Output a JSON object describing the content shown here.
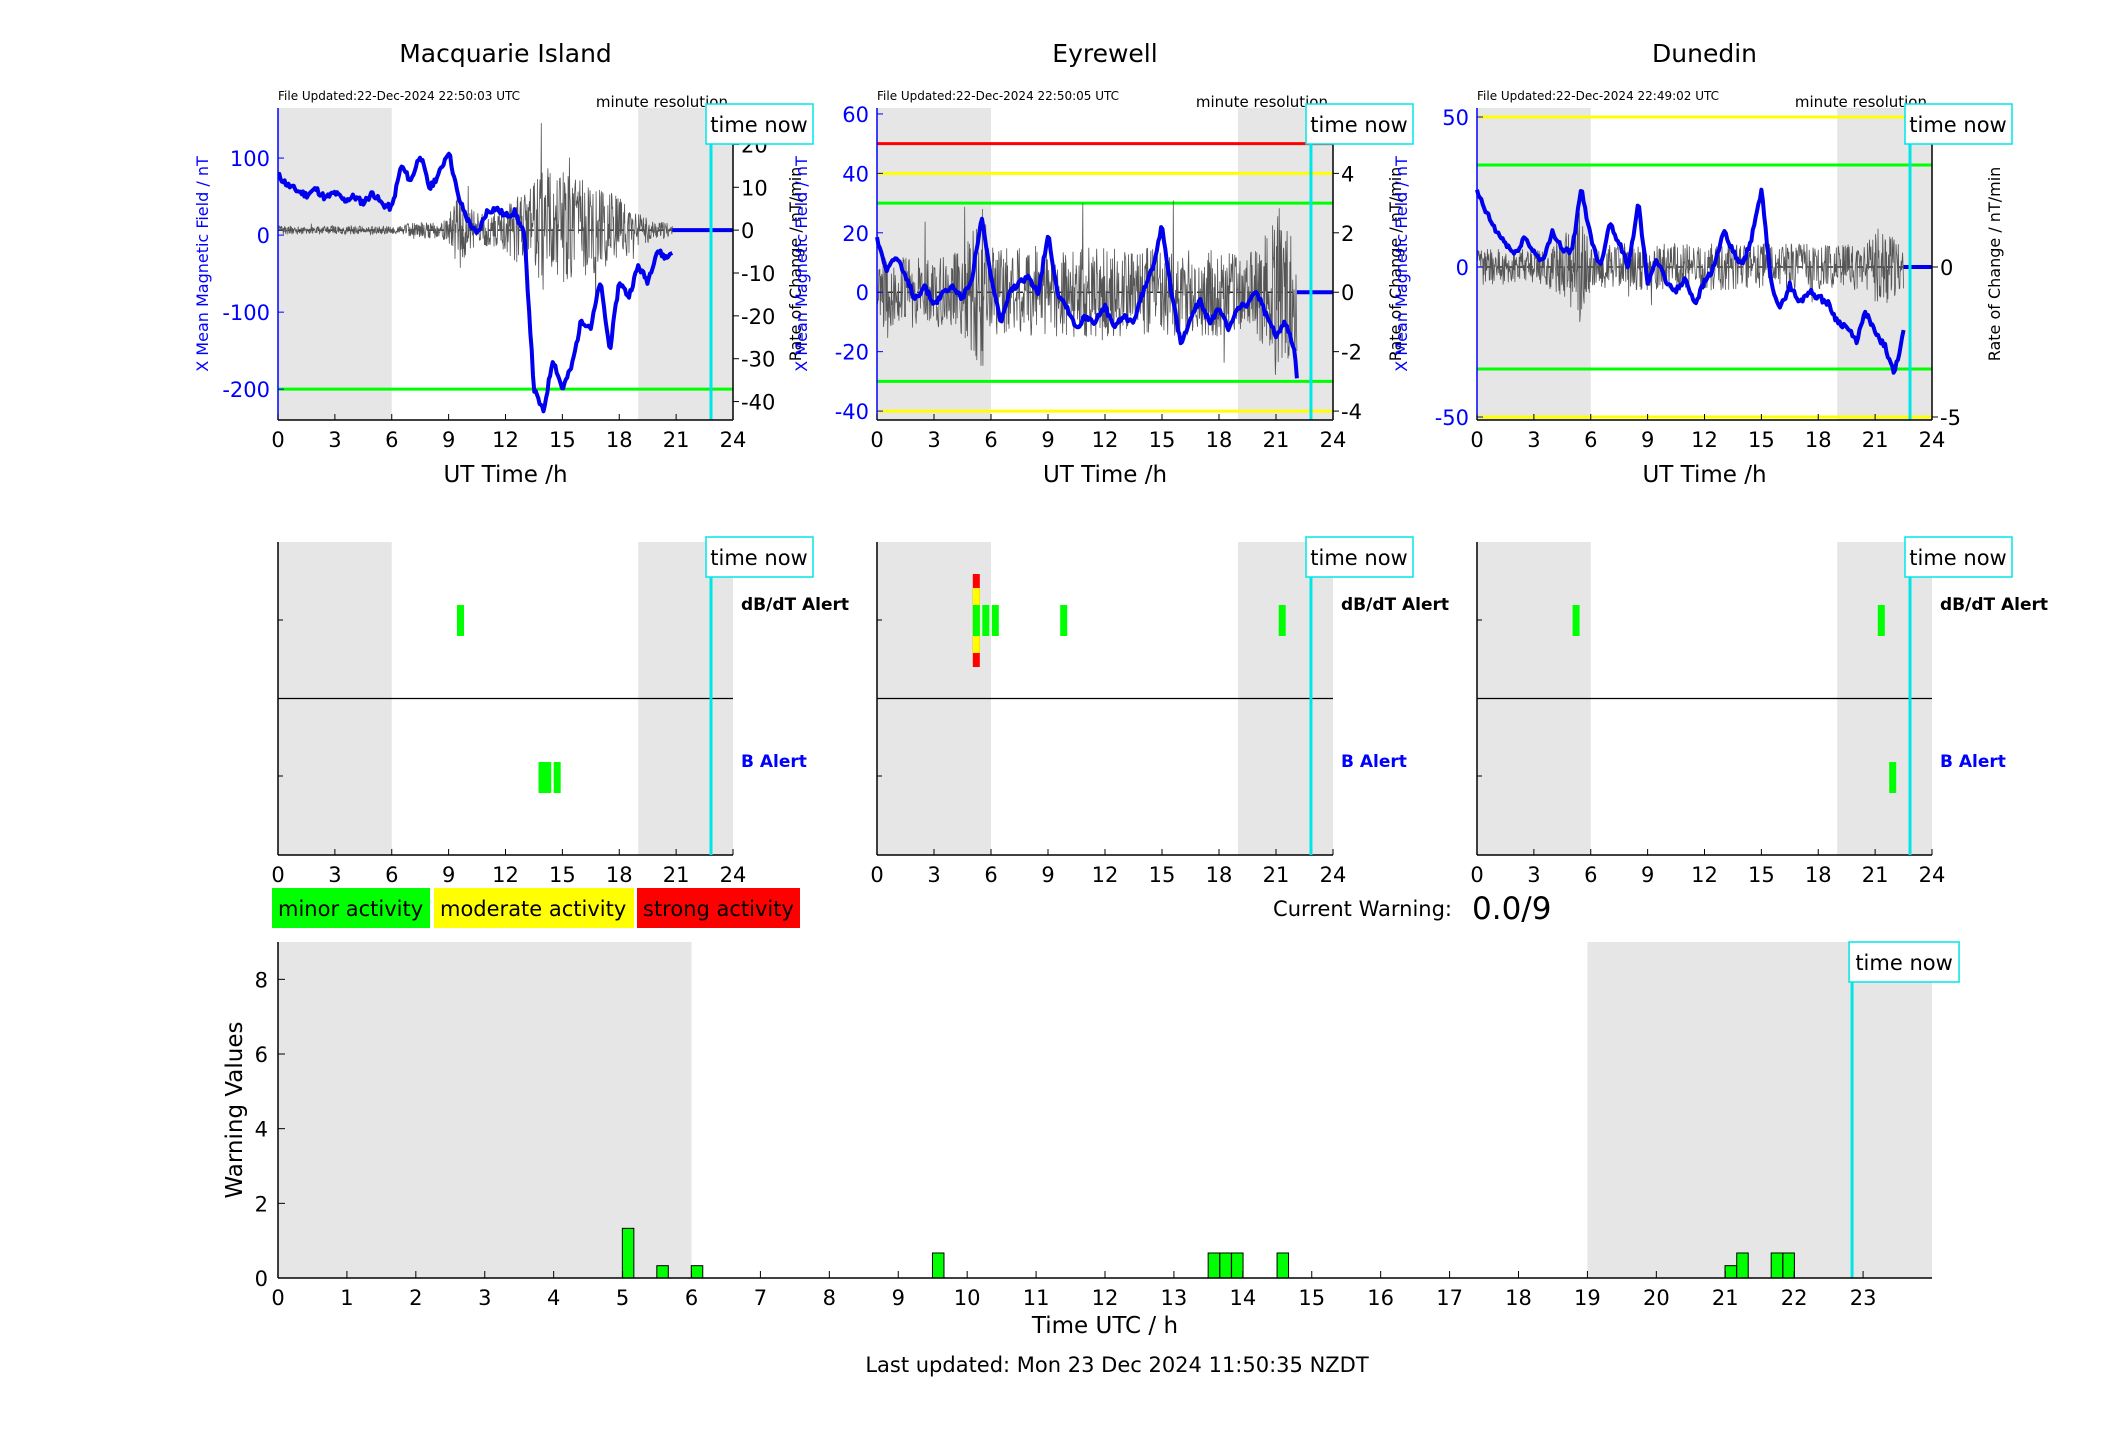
{
  "footer": {
    "last_updated": "Last updated: Mon 23 Dec 2024 11:50:35 NZDT"
  },
  "colors": {
    "field_trace": "#0000ee",
    "rate_trace": "#555555",
    "minor": "#00ff00",
    "moderate": "#ffff00",
    "strong": "#ff0000",
    "night_shade": "#e6e6e6",
    "time_now_line": "#00e5e5",
    "axis_blue": "#0000ff"
  },
  "legend": {
    "minor": "minor activity",
    "moderate": "moderate activity",
    "strong": "strong activity"
  },
  "current_warning": {
    "label": "Current Warning:",
    "value": "0.0/9"
  },
  "common": {
    "time_now_label": "time now",
    "x_label_top": "UT Time /h",
    "y_left_label": "X Mean Magnetic Field / nT",
    "y_right_label": "Rate of Change / nT/min",
    "resolution": "minute resolution",
    "alert_dbdt": "dB/dT Alert",
    "alert_b": "B Alert",
    "time_ticks": [
      0,
      3,
      6,
      9,
      12,
      15,
      18,
      21,
      24
    ]
  },
  "chart_data": [
    {
      "type": "line",
      "title": "Macquarie Island",
      "file_updated": "File Updated:22-Dec-2024 22:50:03 UTC",
      "xlabel": "UT Time /h",
      "xlim": [
        0,
        24
      ],
      "ylabel_left": "X Mean Magnetic Field / nT",
      "ylim_left": [
        -240,
        165
      ],
      "yticks_left": [
        100,
        0,
        -100,
        -200
      ],
      "ylabel_right": "Rate of Change / nT/min",
      "ylim_right": [
        -44.3,
        28.5
      ],
      "yticks_right": [
        20,
        10,
        0,
        -10,
        -20,
        -30,
        -40
      ],
      "thresholds": [
        {
          "value": -200,
          "color": "#00ff00"
        }
      ],
      "night_shading_hours": [
        [
          0,
          6
        ],
        [
          19,
          24
        ]
      ],
      "time_now": 22.84,
      "data_end": 20.8,
      "series": [
        {
          "x": [
            0,
            0.5,
            1,
            1.5,
            2,
            2.5,
            3,
            3.5,
            4,
            4.5,
            5,
            5.5,
            6,
            6.5,
            7,
            7.5,
            8,
            8.5,
            9,
            9.5,
            10,
            10.5,
            11,
            11.5,
            12,
            12.5,
            13,
            13.5,
            14,
            14.5,
            15,
            15.5,
            16,
            16.5,
            17,
            17.5,
            18,
            18.5,
            19,
            19.5,
            20,
            20.5,
            20.8
          ],
          "values": [
            78,
            65,
            58,
            52,
            60,
            48,
            55,
            45,
            50,
            42,
            55,
            40,
            35,
            90,
            70,
            105,
            60,
            80,
            110,
            50,
            20,
            0,
            30,
            35,
            25,
            30,
            0,
            -200,
            -230,
            -160,
            -200,
            -170,
            -110,
            -120,
            -60,
            -150,
            -60,
            -80,
            -40,
            -60,
            -20,
            -30,
            -20
          ]
        }
      ],
      "rate_amplitude": [
        1,
        1,
        1,
        1,
        1,
        1,
        1,
        1,
        1,
        1,
        1,
        1,
        1,
        1,
        2,
        2,
        2,
        2,
        3,
        10,
        5,
        5,
        4,
        4,
        5,
        8,
        9,
        12,
        14,
        16,
        14,
        12,
        12,
        12,
        10,
        10,
        8,
        6,
        4,
        3,
        2,
        2,
        1
      ],
      "alerts": {
        "dbdt": [
          {
            "hour": 9.6,
            "level": "minor"
          }
        ],
        "b": [
          {
            "hour": 13.9,
            "level": "minor"
          },
          {
            "hour": 14.2,
            "level": "minor"
          },
          {
            "hour": 14.7,
            "level": "minor"
          }
        ]
      }
    },
    {
      "type": "line",
      "title": "Eyrewell",
      "file_updated": "File Updated:22-Dec-2024 22:50:05 UTC",
      "xlabel": "UT Time /h",
      "xlim": [
        0,
        24
      ],
      "ylabel_left": "X Mean Magnetic Field / nT",
      "ylim_left": [
        -43,
        62
      ],
      "yticks_left": [
        60,
        40,
        20,
        0,
        -20,
        -40
      ],
      "ylabel_right": "Rate of Change / nT/min",
      "ylim_right": [
        -4.3,
        6.2
      ],
      "yticks_right": [
        6,
        4,
        2,
        0,
        -2,
        -4
      ],
      "thresholds": [
        {
          "value": 50,
          "color": "#ff0000"
        },
        {
          "value": 40,
          "color": "#ffff00"
        },
        {
          "value": 30,
          "color": "#00ff00"
        },
        {
          "value": -30,
          "color": "#00ff00"
        },
        {
          "value": -40,
          "color": "#ffff00"
        }
      ],
      "night_shading_hours": [
        [
          0,
          6
        ],
        [
          19,
          24
        ]
      ],
      "time_now": 22.84,
      "data_end": 22.1,
      "series": [
        {
          "x": [
            0,
            0.5,
            1,
            1.5,
            2,
            2.5,
            3,
            3.5,
            4,
            4.5,
            5,
            5.5,
            6,
            6.5,
            7,
            7.5,
            8,
            8.5,
            9,
            9.5,
            10,
            10.5,
            11,
            11.5,
            12,
            12.5,
            13,
            13.5,
            14,
            14.5,
            15,
            15.5,
            16,
            16.5,
            17,
            17.5,
            18,
            18.5,
            19,
            19.5,
            20,
            20.5,
            21,
            21.5,
            22,
            22.1
          ],
          "values": [
            18,
            8,
            12,
            5,
            -2,
            2,
            -4,
            0,
            2,
            -2,
            5,
            25,
            5,
            -10,
            0,
            3,
            5,
            0,
            20,
            0,
            -5,
            -12,
            -8,
            -10,
            -5,
            -12,
            -8,
            -10,
            0,
            8,
            23,
            0,
            -18,
            -8,
            -3,
            -10,
            -6,
            -12,
            -5,
            -4,
            0,
            -8,
            -15,
            -10,
            -20,
            -28
          ]
        }
      ],
      "rate_amplitude": [
        1.2,
        1.2,
        1.2,
        1.2,
        1.2,
        1.2,
        1.2,
        1.2,
        1.3,
        1.5,
        2,
        3,
        1.5,
        1.5,
        1.5,
        1.5,
        1.5,
        1.5,
        1.5,
        1.5,
        1.5,
        1.5,
        1.5,
        1.5,
        1.5,
        1.5,
        1.5,
        1.5,
        1.5,
        1.5,
        1.5,
        1.5,
        1.5,
        1.5,
        1.5,
        1.5,
        1.5,
        1.5,
        1.5,
        1.5,
        1.5,
        2,
        3,
        2.5,
        2,
        2
      ],
      "alerts": {
        "dbdt": [
          {
            "hour": 5.2,
            "level": "strong"
          },
          {
            "hour": 5.7,
            "level": "minor"
          },
          {
            "hour": 6.2,
            "level": "minor"
          },
          {
            "hour": 9.8,
            "level": "minor"
          },
          {
            "hour": 21.3,
            "level": "minor"
          }
        ],
        "b": []
      }
    },
    {
      "type": "line",
      "title": "Dunedin",
      "file_updated": "File Updated:22-Dec-2024 22:49:02 UTC",
      "xlabel": "UT Time /h",
      "xlim": [
        0,
        24
      ],
      "ylabel_left": "X Mean Magnetic Field / nT",
      "ylim_left": [
        -51,
        53
      ],
      "yticks_left": [
        50,
        0,
        -50
      ],
      "ylabel_right": "Rate of Change / nT/min",
      "ylim_right": [
        -5.1,
        5.3
      ],
      "yticks_right": [
        5,
        0,
        -5
      ],
      "thresholds": [
        {
          "value": 50,
          "color": "#ffff00"
        },
        {
          "value": 34,
          "color": "#00ff00"
        },
        {
          "value": -34,
          "color": "#00ff00"
        },
        {
          "value": -50,
          "color": "#ffff00"
        }
      ],
      "night_shading_hours": [
        [
          0,
          6
        ],
        [
          19,
          24
        ]
      ],
      "time_now": 22.84,
      "data_end": 22.5,
      "series": [
        {
          "x": [
            0,
            0.5,
            1,
            1.5,
            2,
            2.5,
            3,
            3.5,
            4,
            4.5,
            5,
            5.5,
            6,
            6.5,
            7,
            7.5,
            8,
            8.5,
            9,
            9.5,
            10,
            10.5,
            11,
            11.5,
            12,
            12.5,
            13,
            13.5,
            14,
            14.5,
            15,
            15.5,
            16,
            16.5,
            17,
            17.5,
            18,
            18.5,
            19,
            19.5,
            20,
            20.5,
            21,
            21.5,
            22,
            22.5
          ],
          "values": [
            25,
            18,
            12,
            8,
            4,
            10,
            5,
            2,
            12,
            6,
            5,
            26,
            10,
            0,
            15,
            8,
            0,
            22,
            -5,
            2,
            -5,
            -8,
            -4,
            -12,
            -5,
            0,
            12,
            5,
            0,
            10,
            26,
            -5,
            -14,
            -6,
            -12,
            -8,
            -10,
            -12,
            -18,
            -20,
            -25,
            -15,
            -22,
            -26,
            -36,
            -22
          ]
        }
      ],
      "rate_amplitude": [
        0.6,
        0.6,
        0.6,
        0.6,
        0.6,
        0.6,
        0.6,
        0.6,
        0.8,
        1,
        1.5,
        2,
        0.7,
        0.7,
        0.8,
        0.8,
        0.8,
        0.8,
        0.8,
        0.8,
        0.8,
        0.8,
        0.8,
        0.8,
        0.8,
        0.8,
        0.8,
        0.8,
        0.8,
        0.8,
        0.8,
        0.8,
        0.8,
        0.8,
        0.8,
        0.8,
        0.8,
        0.8,
        0.8,
        0.8,
        0.8,
        0.8,
        1.2,
        1.5,
        1,
        0.8
      ],
      "alerts": {
        "dbdt": [
          {
            "hour": 5.2,
            "level": "minor"
          },
          {
            "hour": 21.3,
            "level": "minor"
          }
        ],
        "b": [
          {
            "hour": 21.9,
            "level": "minor"
          }
        ]
      }
    },
    {
      "type": "bar",
      "title": "",
      "xlabel": "Time UTC / h",
      "ylabel": "Warning Values",
      "xlim": [
        0,
        24
      ],
      "ylim": [
        0,
        9
      ],
      "xticks": [
        0,
        1,
        2,
        3,
        4,
        5,
        6,
        7,
        8,
        9,
        10,
        11,
        12,
        13,
        14,
        15,
        16,
        17,
        18,
        19,
        20,
        21,
        22,
        23
      ],
      "yticks": [
        0,
        2,
        4,
        6,
        8
      ],
      "night_shading_hours": [
        [
          0,
          6
        ],
        [
          19,
          24
        ]
      ],
      "time_now": 22.84,
      "x": [
        5.08,
        5.58,
        6.08,
        9.58,
        13.58,
        13.75,
        13.92,
        14.58,
        21.08,
        21.25,
        21.75,
        21.92
      ],
      "values": [
        1.33,
        0.33,
        0.33,
        0.67,
        0.67,
        0.67,
        0.67,
        0.67,
        0.33,
        0.67,
        0.67,
        0.67
      ]
    }
  ]
}
